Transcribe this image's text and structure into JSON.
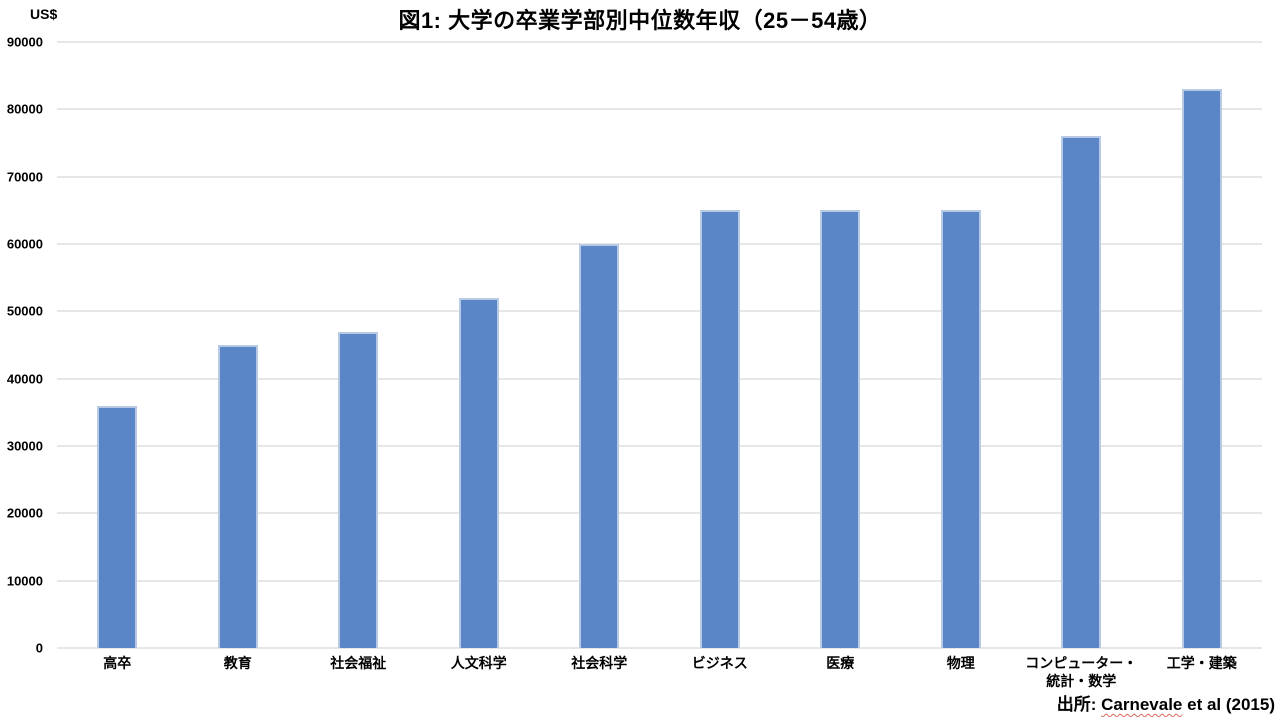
{
  "title": "図1: 大学の卒業学部別中位数年収（25－54歳）",
  "y_axis_unit": "US$",
  "source": {
    "prefix": "出所: ",
    "cited_text": "Carnevale",
    "suffix": " et al (2015)"
  },
  "colors": {
    "bar_fill": "#5a86c8",
    "bar_border": "#b8c9e6",
    "gridline": "#e7e7e7",
    "text": "#000000",
    "spellcheck_underline": "#e0645c"
  },
  "chart_data": {
    "type": "bar",
    "title": "図1: 大学の卒業学部別中位数年収（25－54歳）",
    "categories": [
      "高卒",
      "教育",
      "社会福祉",
      "人文科学",
      "社会科学",
      "ビジネス",
      "医療",
      "物理",
      "コンピューター・\n統計・数学",
      "工学・建築"
    ],
    "values": [
      36000,
      45000,
      47000,
      52000,
      60000,
      65000,
      65000,
      65000,
      76000,
      83000
    ],
    "xlabel": "",
    "ylabel": "US$",
    "ylim": [
      0,
      90000
    ],
    "yticks": [
      0,
      10000,
      20000,
      30000,
      40000,
      50000,
      60000,
      70000,
      80000,
      90000
    ],
    "grid": true,
    "legend": false,
    "source_note": "出所: Carnevale et al (2015)"
  }
}
